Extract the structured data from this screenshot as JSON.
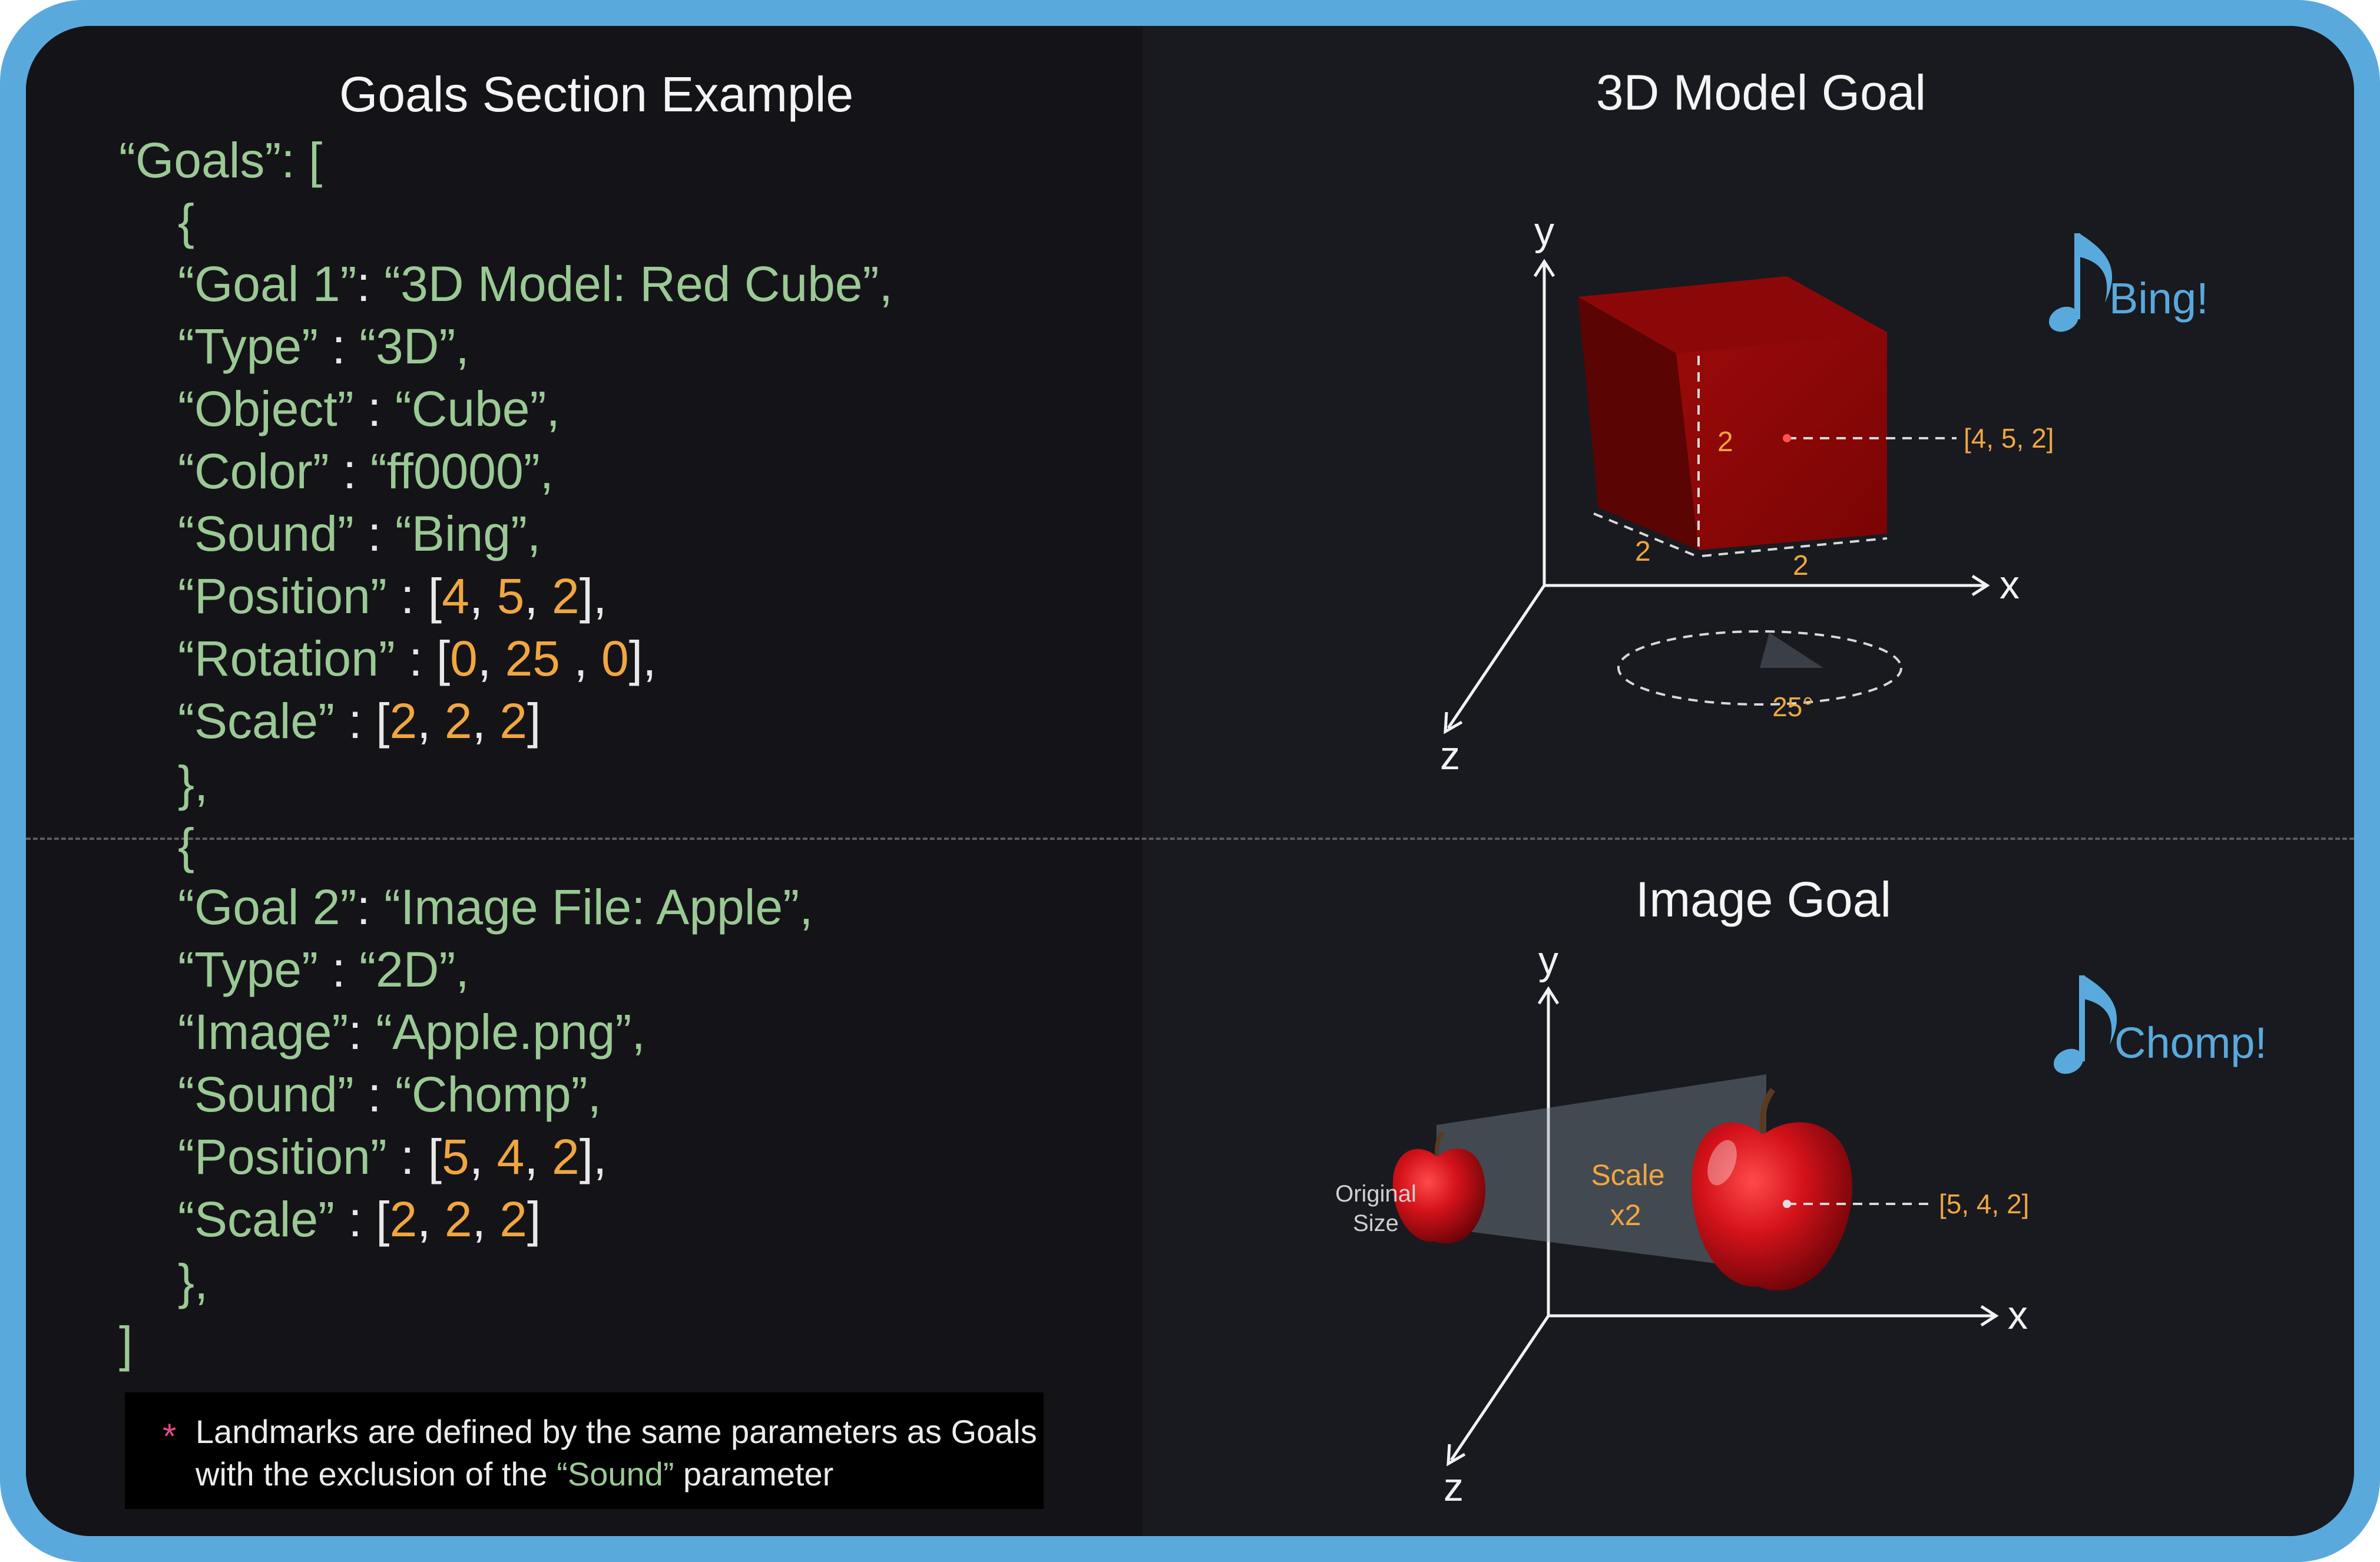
{
  "left": {
    "title": "Goals Section Example",
    "goal1": {
      "open_goals": "“Goals”: [",
      "open_brace": "{",
      "name_key": "“Goal 1”",
      "name_val": "“3D Model: Red Cube”,",
      "type_key": "“Type”",
      "type_val": "“3D”,",
      "object_key": "“Object”",
      "object_val": "“Cube”,",
      "color_key": "“Color”",
      "color_val": "“ff0000”,",
      "sound_key": "“Sound”",
      "sound_val": "“Bing”,",
      "position_key": "“Position”",
      "position_vals": [
        "4",
        "5",
        "2"
      ],
      "rotation_key": "“Rotation”",
      "rotation_vals": [
        "0",
        "25",
        "0"
      ],
      "scale_key": "“Scale”",
      "scale_vals": [
        "2",
        "2",
        "2"
      ],
      "close_brace": "},"
    },
    "goal2": {
      "open_brace": "{",
      "name_key": "“Goal 2”",
      "name_val": "“Image File: Apple”,",
      "type_key": "“Type”",
      "type_val": "“2D”,",
      "image_key": "“Image”",
      "image_val": "“Apple.png”,",
      "sound_key": "“Sound”",
      "sound_val": "“Chomp”,",
      "position_key": "“Position”",
      "position_vals": [
        "5",
        "4",
        "2"
      ],
      "scale_key": "“Scale”",
      "scale_vals": [
        "2",
        "2",
        "2"
      ],
      "close_brace": "},",
      "close_goals": "]"
    },
    "note": {
      "star": "*",
      "line1": "Landmarks are defined by the same parameters as Goals",
      "line2_pre": "with the exclusion of the ",
      "line2_green": "“Sound”",
      "line2_post": " parameter"
    }
  },
  "right": {
    "model": {
      "title": "3D Model Goal",
      "axis_y": "y",
      "axis_x": "x",
      "axis_z": "z",
      "sound": "Bing!",
      "dim_height": "2",
      "dim_depth": "2",
      "dim_width": "2",
      "position_label": "[4, 5, 2]",
      "rotation_label": "25°",
      "cube_color": "#ff0000",
      "sound_icon": "music-note-icon"
    },
    "image": {
      "title": "Image Goal",
      "axis_y": "y",
      "axis_x": "x",
      "axis_z": "z",
      "sound": "Chomp!",
      "original_size_line1": "Original",
      "original_size_line2": "Size",
      "scale_line1": "Scale",
      "scale_line2": "x2",
      "position_label": "[5, 4, 2]",
      "apple_icon": "apple-icon",
      "sound_icon": "music-note-icon"
    }
  },
  "colors": {
    "frame": "#5aa9dc",
    "code_key": "#9bc995",
    "code_number": "#f0a640",
    "note_accent": "#e04a8a",
    "sound_text": "#5aa9dc"
  }
}
